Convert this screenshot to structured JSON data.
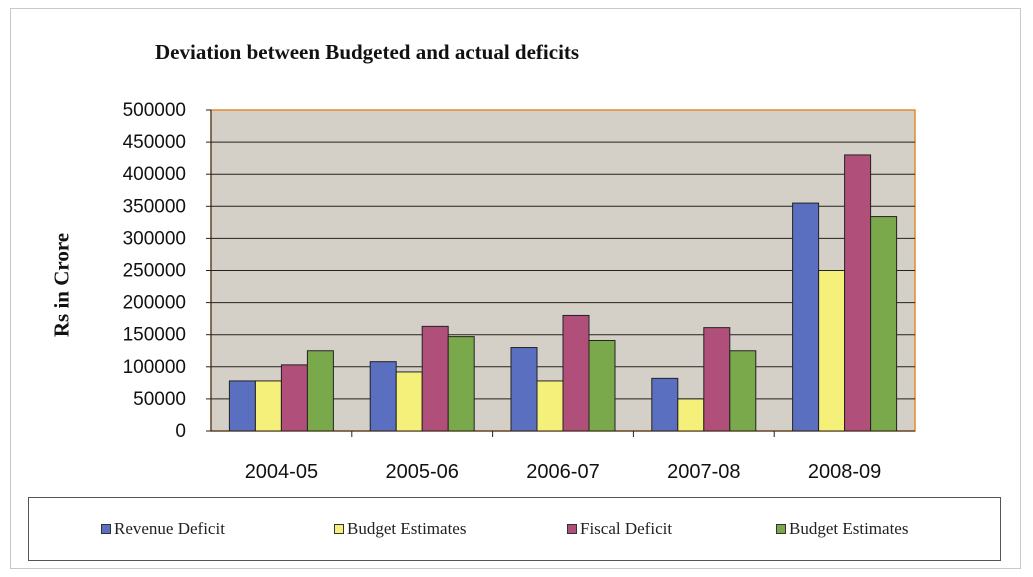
{
  "chart_data": {
    "type": "bar",
    "title": "Deviation between Budgeted and actual deficits",
    "xlabel": "",
    "ylabel": "Rs in Crore",
    "categories": [
      "2004-05",
      "2005-06",
      "2006-07",
      "2007-08",
      "2008-09"
    ],
    "series": [
      {
        "name": "Revenue Deficit",
        "color": "#5a6fbf",
        "values": [
          78000,
          108000,
          130000,
          82000,
          355000
        ]
      },
      {
        "name": "Budget Estimates",
        "color": "#f5f07a",
        "values": [
          78000,
          92000,
          78000,
          50000,
          250000
        ]
      },
      {
        "name": "Fiscal Deficit",
        "color": "#b0507a",
        "values": [
          103000,
          163000,
          180000,
          161000,
          430000
        ]
      },
      {
        "name": "Budget Estimates",
        "color": "#79a94a",
        "values": [
          125000,
          147000,
          141000,
          125000,
          334000
        ]
      }
    ],
    "ylim": [
      0,
      500000
    ],
    "yticks": [
      "0",
      "50000",
      "100000",
      "150000",
      "200000",
      "250000",
      "300000",
      "350000",
      "400000",
      "450000",
      "500000"
    ],
    "grid": true,
    "legend_position": "bottom"
  }
}
